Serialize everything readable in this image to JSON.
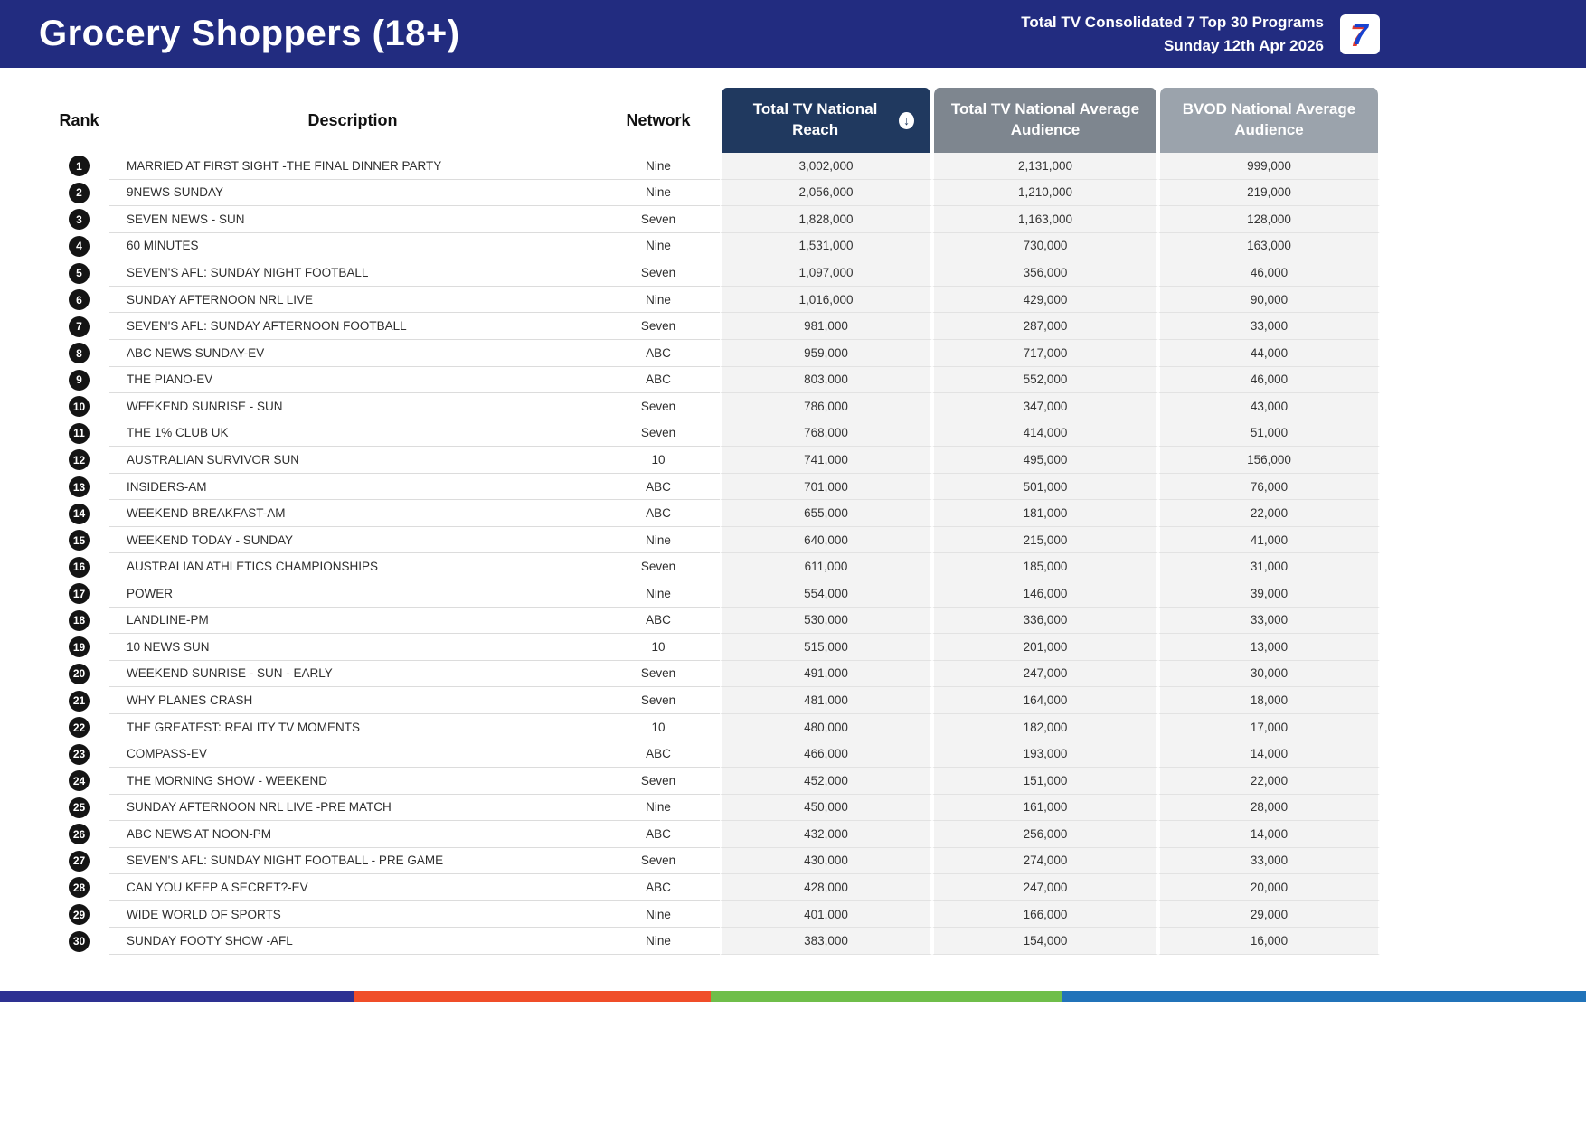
{
  "header": {
    "title": "Grocery Shoppers (18+)",
    "report_line1": "Total TV Consolidated 7 Top 30 Programs",
    "report_line2": "Sunday 12th Apr 2026",
    "logo_text": "7"
  },
  "chart_data": {
    "type": "table",
    "title": "Grocery Shoppers (18+)",
    "subtitle": "Total TV Consolidated 7 Top 30 Programs - Sunday 12th Apr 2026",
    "sort": "Total TV National Reach, descending",
    "columns": {
      "rank": "Rank",
      "description": "Description",
      "network": "Network",
      "reach": "Total TV National Reach",
      "avg": "Total TV National Average Audience",
      "bvod": "BVOD National Average Audience"
    },
    "rows": [
      {
        "rank": "1",
        "description": "MARRIED AT FIRST SIGHT -THE FINAL DINNER PARTY",
        "network": "Nine",
        "reach": "3,002,000",
        "avg": "2,131,000",
        "bvod": "999,000"
      },
      {
        "rank": "2",
        "description": "9NEWS SUNDAY",
        "network": "Nine",
        "reach": "2,056,000",
        "avg": "1,210,000",
        "bvod": "219,000"
      },
      {
        "rank": "3",
        "description": "SEVEN NEWS - SUN",
        "network": "Seven",
        "reach": "1,828,000",
        "avg": "1,163,000",
        "bvod": "128,000"
      },
      {
        "rank": "4",
        "description": "60 MINUTES",
        "network": "Nine",
        "reach": "1,531,000",
        "avg": "730,000",
        "bvod": "163,000"
      },
      {
        "rank": "5",
        "description": "SEVEN'S AFL: SUNDAY NIGHT FOOTBALL",
        "network": "Seven",
        "reach": "1,097,000",
        "avg": "356,000",
        "bvod": "46,000"
      },
      {
        "rank": "6",
        "description": "SUNDAY AFTERNOON NRL LIVE",
        "network": "Nine",
        "reach": "1,016,000",
        "avg": "429,000",
        "bvod": "90,000"
      },
      {
        "rank": "7",
        "description": "SEVEN'S AFL: SUNDAY AFTERNOON FOOTBALL",
        "network": "Seven",
        "reach": "981,000",
        "avg": "287,000",
        "bvod": "33,000"
      },
      {
        "rank": "8",
        "description": "ABC NEWS SUNDAY-EV",
        "network": "ABC",
        "reach": "959,000",
        "avg": "717,000",
        "bvod": "44,000"
      },
      {
        "rank": "9",
        "description": "THE PIANO-EV",
        "network": "ABC",
        "reach": "803,000",
        "avg": "552,000",
        "bvod": "46,000"
      },
      {
        "rank": "10",
        "description": "WEEKEND SUNRISE - SUN",
        "network": "Seven",
        "reach": "786,000",
        "avg": "347,000",
        "bvod": "43,000"
      },
      {
        "rank": "11",
        "description": "THE 1% CLUB UK",
        "network": "Seven",
        "reach": "768,000",
        "avg": "414,000",
        "bvod": "51,000"
      },
      {
        "rank": "12",
        "description": "AUSTRALIAN SURVIVOR SUN",
        "network": "10",
        "reach": "741,000",
        "avg": "495,000",
        "bvod": "156,000"
      },
      {
        "rank": "13",
        "description": "INSIDERS-AM",
        "network": "ABC",
        "reach": "701,000",
        "avg": "501,000",
        "bvod": "76,000"
      },
      {
        "rank": "14",
        "description": "WEEKEND BREAKFAST-AM",
        "network": "ABC",
        "reach": "655,000",
        "avg": "181,000",
        "bvod": "22,000"
      },
      {
        "rank": "15",
        "description": "WEEKEND TODAY - SUNDAY",
        "network": "Nine",
        "reach": "640,000",
        "avg": "215,000",
        "bvod": "41,000"
      },
      {
        "rank": "16",
        "description": "AUSTRALIAN ATHLETICS CHAMPIONSHIPS",
        "network": "Seven",
        "reach": "611,000",
        "avg": "185,000",
        "bvod": "31,000"
      },
      {
        "rank": "17",
        "description": "POWER",
        "network": "Nine",
        "reach": "554,000",
        "avg": "146,000",
        "bvod": "39,000"
      },
      {
        "rank": "18",
        "description": "LANDLINE-PM",
        "network": "ABC",
        "reach": "530,000",
        "avg": "336,000",
        "bvod": "33,000"
      },
      {
        "rank": "19",
        "description": "10 NEWS SUN",
        "network": "10",
        "reach": "515,000",
        "avg": "201,000",
        "bvod": "13,000"
      },
      {
        "rank": "20",
        "description": "WEEKEND SUNRISE - SUN - EARLY",
        "network": "Seven",
        "reach": "491,000",
        "avg": "247,000",
        "bvod": "30,000"
      },
      {
        "rank": "21",
        "description": "WHY PLANES CRASH",
        "network": "Seven",
        "reach": "481,000",
        "avg": "164,000",
        "bvod": "18,000"
      },
      {
        "rank": "22",
        "description": "THE GREATEST: REALITY TV MOMENTS",
        "network": "10",
        "reach": "480,000",
        "avg": "182,000",
        "bvod": "17,000"
      },
      {
        "rank": "23",
        "description": "COMPASS-EV",
        "network": "ABC",
        "reach": "466,000",
        "avg": "193,000",
        "bvod": "14,000"
      },
      {
        "rank": "24",
        "description": "THE MORNING SHOW - WEEKEND",
        "network": "Seven",
        "reach": "452,000",
        "avg": "151,000",
        "bvod": "22,000"
      },
      {
        "rank": "25",
        "description": "SUNDAY AFTERNOON NRL LIVE -PRE MATCH",
        "network": "Nine",
        "reach": "450,000",
        "avg": "161,000",
        "bvod": "28,000"
      },
      {
        "rank": "26",
        "description": "ABC NEWS AT NOON-PM",
        "network": "ABC",
        "reach": "432,000",
        "avg": "256,000",
        "bvod": "14,000"
      },
      {
        "rank": "27",
        "description": "SEVEN'S AFL: SUNDAY NIGHT FOOTBALL - PRE GAME",
        "network": "Seven",
        "reach": "430,000",
        "avg": "274,000",
        "bvod": "33,000"
      },
      {
        "rank": "28",
        "description": "CAN YOU KEEP A SECRET?-EV",
        "network": "ABC",
        "reach": "428,000",
        "avg": "247,000",
        "bvod": "20,000"
      },
      {
        "rank": "29",
        "description": "WIDE WORLD OF SPORTS",
        "network": "Nine",
        "reach": "401,000",
        "avg": "166,000",
        "bvod": "29,000"
      },
      {
        "rank": "30",
        "description": "SUNDAY FOOTY SHOW -AFL",
        "network": "Nine",
        "reach": "383,000",
        "avg": "154,000",
        "bvod": "16,000"
      }
    ]
  },
  "sort_icon_glyph": "↓",
  "footer": {
    "stripe": [
      {
        "name": "navy",
        "color": "#2e3192",
        "width": "22.3%"
      },
      {
        "name": "orange",
        "color": "#f04e29",
        "width": "22.5%"
      },
      {
        "name": "green",
        "color": "#6fbe4a",
        "width": "22.2%"
      },
      {
        "name": "blue",
        "color": "#2173b9",
        "width": "33%"
      }
    ]
  },
  "colors": {
    "banner": "#222c80",
    "reach_header": "#20395f",
    "avg_header": "#7e868f",
    "bvod_header": "#9ba3ac",
    "rank_circle": "#141414",
    "numeric_column_bg": "#f3f3f3"
  }
}
